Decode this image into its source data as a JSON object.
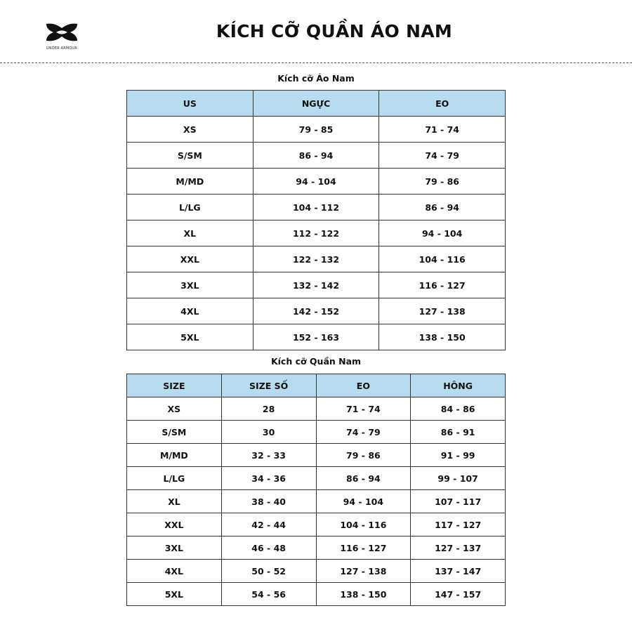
{
  "brand": {
    "name": "UNDER ARMOUR"
  },
  "title": "KÍCH CỠ QUẦN ÁO NAM",
  "colors": {
    "header_bg": "#b8dcef",
    "border": "#333333"
  },
  "shirt": {
    "caption": "Kích cỡ Áo Nam",
    "headers": [
      "US",
      "NGỰC",
      "EO"
    ],
    "rows": [
      [
        "XS",
        "79 - 85",
        "71 - 74"
      ],
      [
        "S/SM",
        "86 - 94",
        "74 - 79"
      ],
      [
        "M/MD",
        "94 - 104",
        "79 - 86"
      ],
      [
        "L/LG",
        "104 - 112",
        "86 - 94"
      ],
      [
        "XL",
        "112 - 122",
        "94 - 104"
      ],
      [
        "XXL",
        "122 - 132",
        "104 - 116"
      ],
      [
        "3XL",
        "132 - 142",
        "116 - 127"
      ],
      [
        "4XL",
        "142 - 152",
        "127 - 138"
      ],
      [
        "5XL",
        "152 - 163",
        "138 - 150"
      ]
    ]
  },
  "pants": {
    "caption": "Kích cỡ Quần Nam",
    "headers": [
      "SIZE",
      "SIZE SỐ",
      "EO",
      "HÔNG"
    ],
    "rows": [
      [
        "XS",
        "28",
        "71 - 74",
        "84 - 86"
      ],
      [
        "S/SM",
        "30",
        "74 - 79",
        "86 - 91"
      ],
      [
        "M/MD",
        "32 - 33",
        "79 - 86",
        "91 - 99"
      ],
      [
        "L/LG",
        "34 - 36",
        "86 - 94",
        "99 - 107"
      ],
      [
        "XL",
        "38 - 40",
        "94 - 104",
        "107 - 117"
      ],
      [
        "XXL",
        "42 - 44",
        "104 - 116",
        "117 - 127"
      ],
      [
        "3XL",
        "46 - 48",
        "116 - 127",
        "127 - 137"
      ],
      [
        "4XL",
        "50 - 52",
        "127 - 138",
        "137 - 147"
      ],
      [
        "5XL",
        "54 - 56",
        "138 - 150",
        "147 - 157"
      ]
    ]
  }
}
